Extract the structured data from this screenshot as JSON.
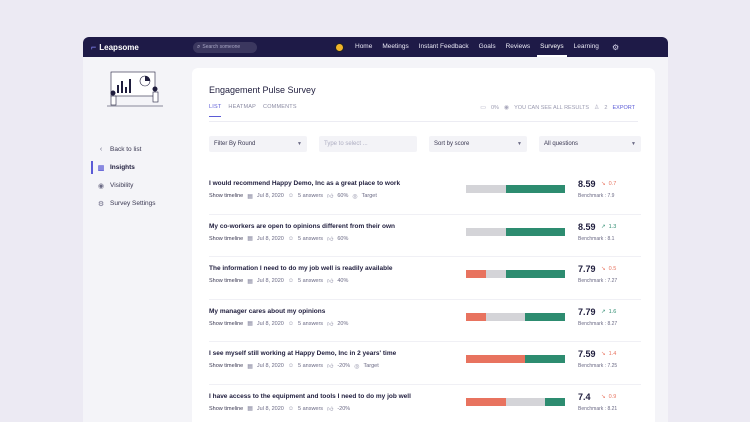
{
  "app": {
    "name": "Leapsome",
    "search_placeholder": "Search someone"
  },
  "nav": {
    "items": [
      "Home",
      "Meetings",
      "Instant Feedback",
      "Goals",
      "Reviews",
      "Surveys",
      "Learning"
    ],
    "active": "Surveys"
  },
  "sidebar": {
    "items": [
      {
        "label": "Back to list",
        "icon": "chevron-left-icon"
      },
      {
        "label": "Insights",
        "icon": "chart-icon"
      },
      {
        "label": "Visibility",
        "icon": "eye-icon"
      },
      {
        "label": "Survey Settings",
        "icon": "gear-icon"
      }
    ],
    "active": "Insights"
  },
  "page": {
    "title": "Engagement Pulse Survey",
    "tabs": [
      "LIST",
      "HEATMAP",
      "COMMENTS"
    ],
    "active_tab": "LIST",
    "meta": {
      "comments": "0%",
      "visibility": "YOU CAN SEE ALL RESULTS",
      "participants": "2",
      "export": "EXPORT"
    }
  },
  "filters": {
    "round": "Filter By Round",
    "select_placeholder": "Type to select ...",
    "sort": "Sort by score",
    "questions": "All questions"
  },
  "colors": {
    "accent": "#5b5bd6",
    "positive": "#2d8c70",
    "negative": "#e8735f",
    "neutral": "#d4d4d8",
    "topbar": "#1e1a47"
  },
  "questions": [
    {
      "text": "I would recommend Happy Demo, Inc as a great place to work",
      "timeline": "Show timeline",
      "date": "Jul 8, 2020",
      "answers": "5 answers",
      "favorability": "60%",
      "target": "Target",
      "score": "8.59",
      "delta": "0.7",
      "trend": "down",
      "benchmark": "Benchmark : 7.9",
      "dist": [
        0,
        0.4,
        0.6
      ]
    },
    {
      "text": "My co-workers are open to opinions different from their own",
      "timeline": "Show timeline",
      "date": "Jul 8, 2020",
      "answers": "5 answers",
      "favorability": "60%",
      "target": "",
      "score": "8.59",
      "delta": "1.3",
      "trend": "up",
      "benchmark": "Benchmark : 8.1",
      "dist": [
        0,
        0.4,
        0.6
      ]
    },
    {
      "text": "The information I need to do my job well is readily available",
      "timeline": "Show timeline",
      "date": "Jul 8, 2020",
      "answers": "5 answers",
      "favorability": "40%",
      "target": "",
      "score": "7.79",
      "delta": "0.5",
      "trend": "down",
      "benchmark": "Benchmark : 7.27",
      "dist": [
        0.2,
        0.2,
        0.6
      ]
    },
    {
      "text": "My manager cares about my opinions",
      "timeline": "Show timeline",
      "date": "Jul 8, 2020",
      "answers": "5 answers",
      "favorability": "20%",
      "target": "",
      "score": "7.79",
      "delta": "1.6",
      "trend": "up",
      "benchmark": "Benchmark : 8.27",
      "dist": [
        0.2,
        0.4,
        0.4
      ]
    },
    {
      "text": "I see myself still working at Happy Demo, Inc in 2 years' time",
      "timeline": "Show timeline",
      "date": "Jul 8, 2020",
      "answers": "5 answers",
      "favorability": "-20%",
      "target": "Target",
      "score": "7.59",
      "delta": "1.4",
      "trend": "down",
      "benchmark": "Benchmark : 7.25",
      "dist": [
        0.6,
        0,
        0.4
      ]
    },
    {
      "text": "I have access to the equipment and tools I need to do my job well",
      "timeline": "Show timeline",
      "date": "Jul 8, 2020",
      "answers": "5 answers",
      "favorability": "-20%",
      "target": "",
      "score": "7.4",
      "delta": "0.9",
      "trend": "down",
      "benchmark": "Benchmark : 8.21",
      "dist": [
        0.4,
        0.4,
        0.2
      ]
    }
  ]
}
